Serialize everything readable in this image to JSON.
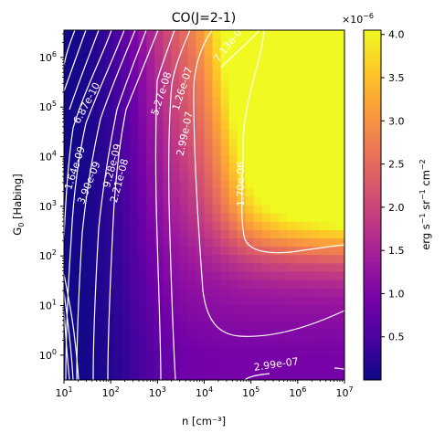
{
  "chart_data": {
    "type": "heatmap",
    "title": "CO(J=2-1)",
    "xlabel": "n [cm⁻³]",
    "ylabel_main": "G",
    "ylabel_sub": "0",
    "ylabel_rest": " [Habing]",
    "x_scale": "log",
    "y_scale": "log",
    "xlim_log10": [
      1,
      7
    ],
    "ylim_log10": [
      -0.5,
      6.55
    ],
    "x_ticks": [
      {
        "log": 1,
        "base": "10",
        "exp": "1"
      },
      {
        "log": 2,
        "base": "10",
        "exp": "2"
      },
      {
        "log": 3,
        "base": "10",
        "exp": "3"
      },
      {
        "log": 4,
        "base": "10",
        "exp": "4"
      },
      {
        "log": 5,
        "base": "10",
        "exp": "5"
      },
      {
        "log": 6,
        "base": "10",
        "exp": "6"
      },
      {
        "log": 7,
        "base": "10",
        "exp": "7"
      }
    ],
    "y_ticks": [
      {
        "log": 0,
        "base": "10",
        "exp": "0"
      },
      {
        "log": 1,
        "base": "10",
        "exp": "1"
      },
      {
        "log": 2,
        "base": "10",
        "exp": "2"
      },
      {
        "log": 3,
        "base": "10",
        "exp": "3"
      },
      {
        "log": 4,
        "base": "10",
        "exp": "4"
      },
      {
        "log": 5,
        "base": "10",
        "exp": "5"
      },
      {
        "log": 6,
        "base": "10",
        "exp": "6"
      }
    ],
    "colormap": [
      "#0d0887",
      "#46039f",
      "#7201a8",
      "#9c179e",
      "#bd3786",
      "#d8576b",
      "#ed7953",
      "#fb9f3a",
      "#fdca26",
      "#f0f921"
    ],
    "colorbar": {
      "label_main": "erg s",
      "label_rest": "sr",
      "label_end": "cm",
      "exp1": "−1",
      "exp2": "−1",
      "exp3": "−2",
      "multiplier_base": "×10",
      "multiplier_exp": "−6",
      "min": 0.0,
      "max": 4.05,
      "ticks": [
        "0.5",
        "1.0",
        "1.5",
        "2.0",
        "2.5",
        "3.0",
        "3.5",
        "4.0"
      ]
    },
    "contour_labels": [
      {
        "text": "6.87e-10",
        "lx": 1.55,
        "ly": 5.05
      },
      {
        "text": "1.64e-09",
        "lx": 1.3,
        "ly": 3.75
      },
      {
        "text": "3.90e-09",
        "lx": 1.6,
        "ly": 3.45
      },
      {
        "text": "9.28e-09",
        "lx": 2.1,
        "ly": 3.8
      },
      {
        "text": "2.21e-08",
        "lx": 2.25,
        "ly": 3.5
      },
      {
        "text": "5.27e-08",
        "lx": 3.15,
        "ly": 5.25
      },
      {
        "text": "1.26e-07",
        "lx": 3.6,
        "ly": 5.35
      },
      {
        "text": "2.99e-07",
        "lx": 3.65,
        "ly": 4.45
      },
      {
        "text": "7.13e-07",
        "lx": 4.6,
        "ly": 6.25
      },
      {
        "text": "1.70e-06",
        "lx": 4.85,
        "ly": 3.45
      },
      {
        "text": "2.99e-07",
        "lx": 5.55,
        "ly": -0.25
      }
    ]
  }
}
